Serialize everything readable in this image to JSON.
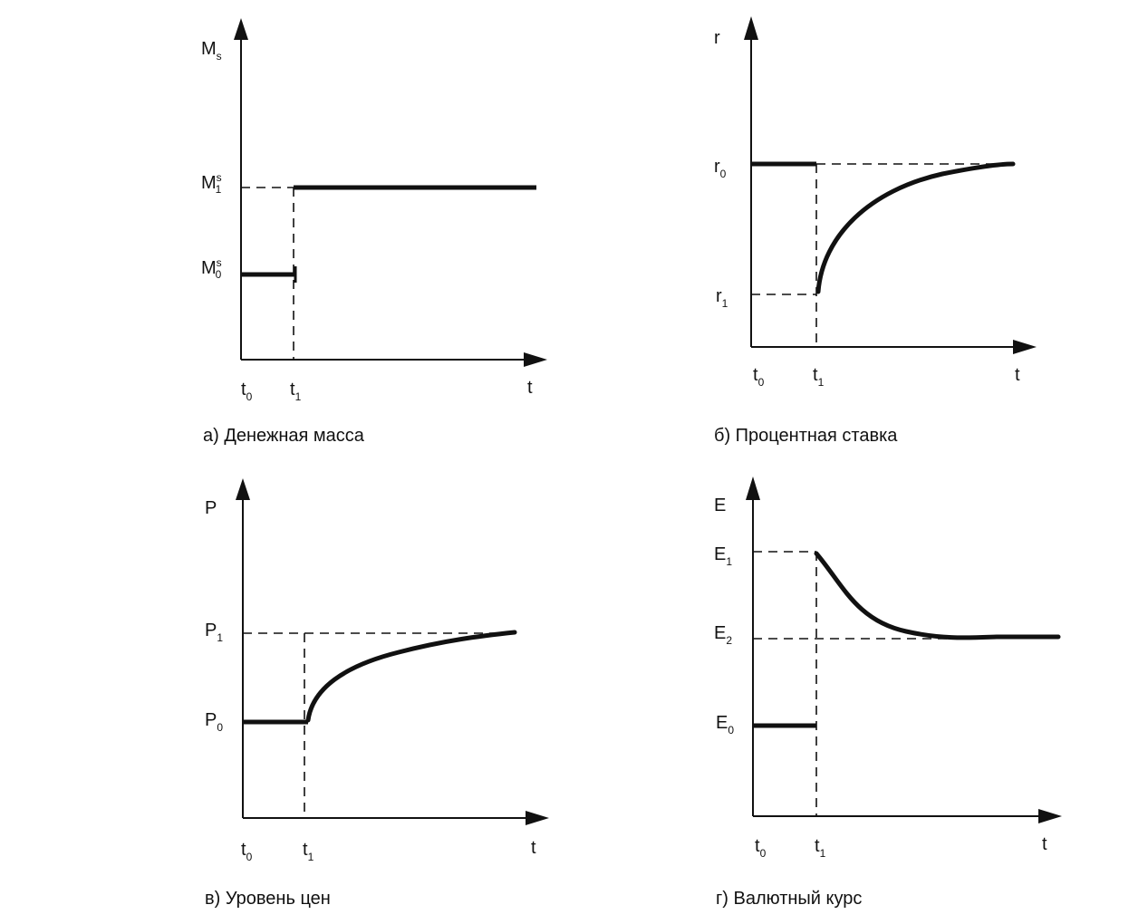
{
  "panels": [
    {
      "id": "a",
      "caption": "а) Денежная масса",
      "y_axis": {
        "base": "M",
        "sub": "s"
      },
      "x_axis": "t",
      "t0": {
        "base": "t",
        "sub": "0"
      },
      "t1": {
        "base": "t",
        "sub": "1"
      },
      "levels": [
        {
          "base": "M",
          "sup": "s",
          "sub": "1"
        },
        {
          "base": "M",
          "sup": "s",
          "sub": "0"
        }
      ]
    },
    {
      "id": "b",
      "caption": "б) Процентная ставка",
      "y_axis": {
        "base": "r",
        "sub": ""
      },
      "x_axis": "t",
      "t0": {
        "base": "t",
        "sub": "0"
      },
      "t1": {
        "base": "t",
        "sub": "1"
      },
      "levels": [
        {
          "base": "r",
          "sub": "0"
        },
        {
          "base": "r",
          "sub": "1"
        }
      ]
    },
    {
      "id": "v",
      "caption": "в) Уровень цен",
      "y_axis": {
        "base": "P",
        "sub": ""
      },
      "x_axis": "t",
      "t0": {
        "base": "t",
        "sub": "0"
      },
      "t1": {
        "base": "t",
        "sub": "1"
      },
      "levels": [
        {
          "base": "P",
          "sub": "1"
        },
        {
          "base": "P",
          "sub": "0"
        }
      ]
    },
    {
      "id": "g",
      "caption": "г) Валютный курс",
      "y_axis": {
        "base": "E",
        "sub": ""
      },
      "x_axis": "t",
      "t0": {
        "base": "t",
        "sub": "0"
      },
      "t1": {
        "base": "t",
        "sub": "1"
      },
      "levels": [
        {
          "base": "E",
          "sub": "1"
        },
        {
          "base": "E",
          "sub": "2"
        },
        {
          "base": "E",
          "sub": "0"
        }
      ]
    }
  ]
}
